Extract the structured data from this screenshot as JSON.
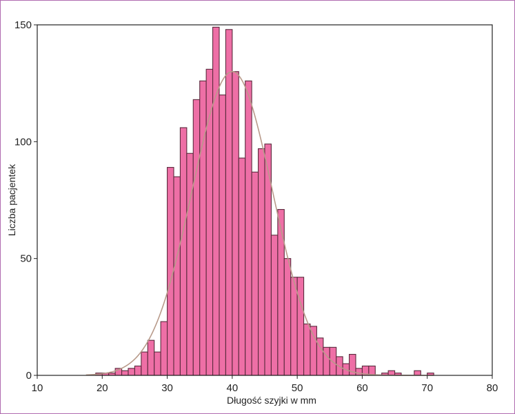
{
  "chart_data": {
    "type": "bar",
    "subtype": "histogram",
    "xlabel": "Długość szyjki w mm",
    "ylabel": "Liczba pacjentek",
    "xlim": [
      10,
      80
    ],
    "ylim": [
      0,
      150
    ],
    "xticks": [
      10,
      20,
      30,
      40,
      50,
      60,
      70,
      80
    ],
    "yticks": [
      0,
      50,
      100,
      150
    ],
    "bin_width": 1,
    "bins": [
      {
        "x": 19.5,
        "count": 1
      },
      {
        "x": 20.5,
        "count": 1
      },
      {
        "x": 21.5,
        "count": 1
      },
      {
        "x": 22.5,
        "count": 3
      },
      {
        "x": 23.5,
        "count": 2
      },
      {
        "x": 24.5,
        "count": 3
      },
      {
        "x": 25.5,
        "count": 4
      },
      {
        "x": 26.5,
        "count": 10
      },
      {
        "x": 27.5,
        "count": 15
      },
      {
        "x": 28.5,
        "count": 10
      },
      {
        "x": 29.5,
        "count": 23
      },
      {
        "x": 30.5,
        "count": 89
      },
      {
        "x": 31.5,
        "count": 85
      },
      {
        "x": 32.5,
        "count": 106
      },
      {
        "x": 33.5,
        "count": 95
      },
      {
        "x": 34.5,
        "count": 118
      },
      {
        "x": 35.5,
        "count": 126
      },
      {
        "x": 36.5,
        "count": 131
      },
      {
        "x": 37.5,
        "count": 149
      },
      {
        "x": 38.5,
        "count": 120
      },
      {
        "x": 39.5,
        "count": 148
      },
      {
        "x": 40.5,
        "count": 130
      },
      {
        "x": 41.5,
        "count": 93
      },
      {
        "x": 42.5,
        "count": 126
      },
      {
        "x": 43.5,
        "count": 87
      },
      {
        "x": 44.5,
        "count": 97
      },
      {
        "x": 45.5,
        "count": 99
      },
      {
        "x": 46.5,
        "count": 60
      },
      {
        "x": 47.5,
        "count": 71
      },
      {
        "x": 48.5,
        "count": 50
      },
      {
        "x": 49.5,
        "count": 42
      },
      {
        "x": 50.5,
        "count": 42
      },
      {
        "x": 51.5,
        "count": 22
      },
      {
        "x": 52.5,
        "count": 21
      },
      {
        "x": 53.5,
        "count": 16
      },
      {
        "x": 54.5,
        "count": 12
      },
      {
        "x": 55.5,
        "count": 12
      },
      {
        "x": 56.5,
        "count": 8
      },
      {
        "x": 57.5,
        "count": 5
      },
      {
        "x": 58.5,
        "count": 9
      },
      {
        "x": 59.5,
        "count": 3
      },
      {
        "x": 60.5,
        "count": 4
      },
      {
        "x": 61.5,
        "count": 4
      },
      {
        "x": 63.5,
        "count": 1
      },
      {
        "x": 64.5,
        "count": 2
      },
      {
        "x": 65.5,
        "count": 1
      },
      {
        "x": 68.5,
        "count": 2
      },
      {
        "x": 70.5,
        "count": 1
      }
    ],
    "fit_curve": {
      "type": "normal",
      "mean": 40,
      "sd": 6.2,
      "peak": 130
    },
    "grid": false,
    "legend": "none",
    "colors": {
      "bar_fill": "#ee6fa6",
      "bar_stroke": "#5a2a3c",
      "curve": "#b89a8a",
      "axis": "#222222"
    }
  }
}
